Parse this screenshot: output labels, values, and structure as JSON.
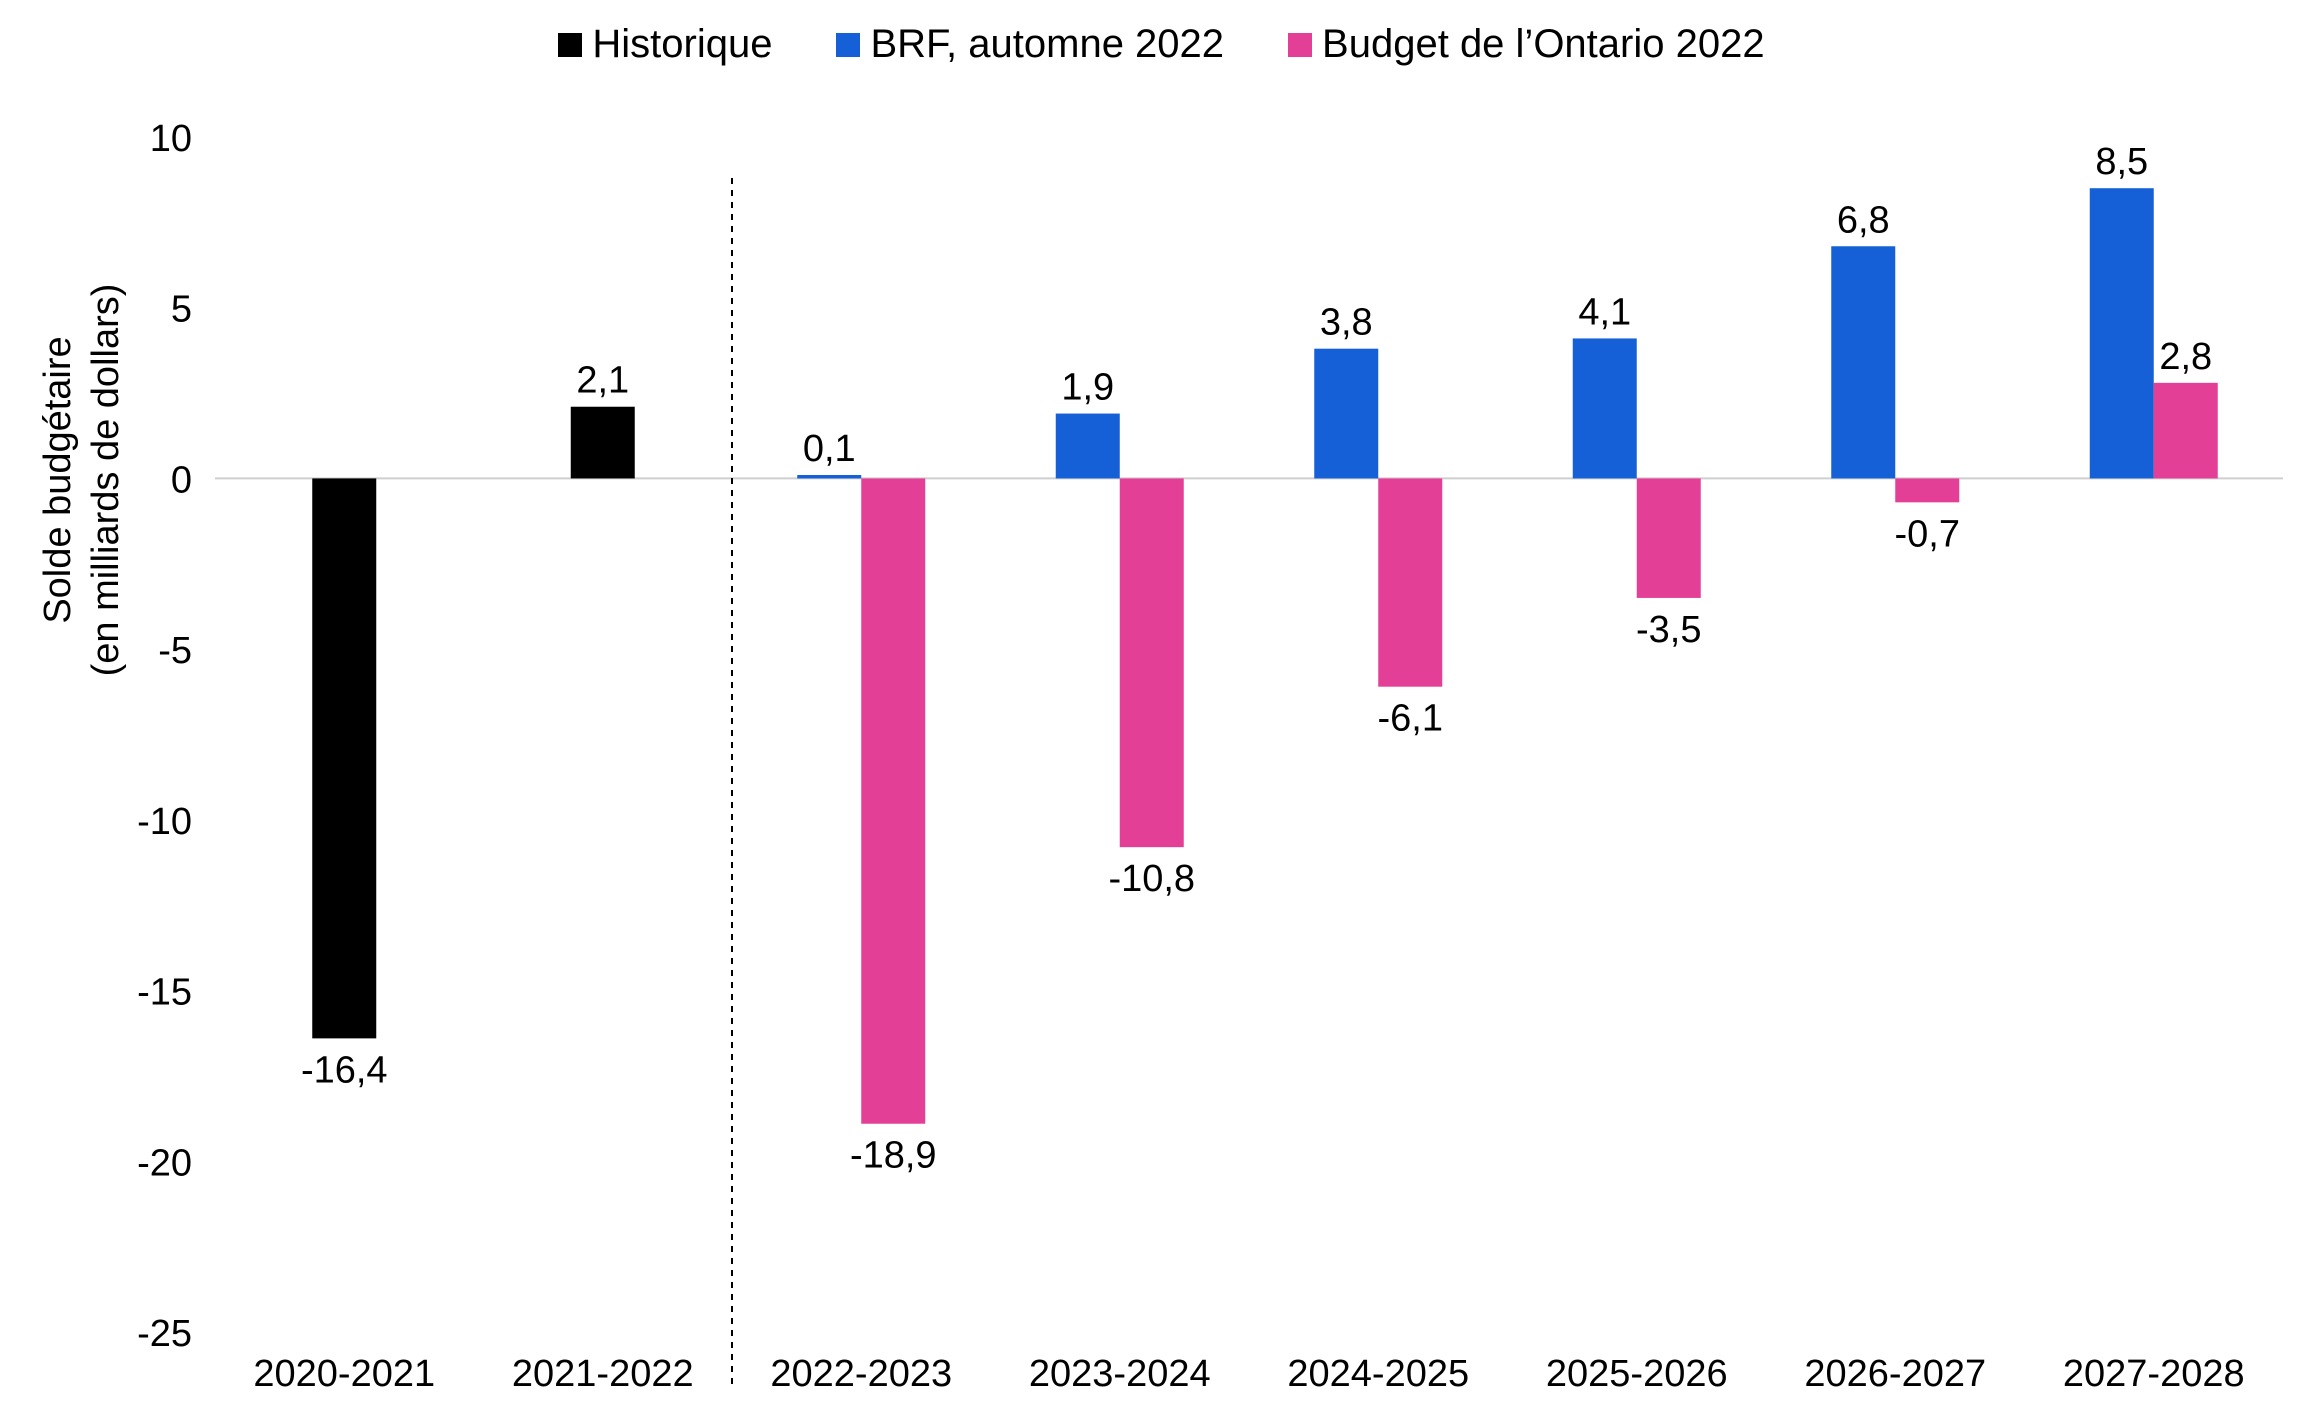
{
  "chart_data": {
    "type": "bar",
    "title": "",
    "xlabel": "",
    "ylabel_lines": [
      "Solde budgétaire",
      "(en milliards de dollars)"
    ],
    "ylim": [
      -25,
      10
    ],
    "yticks": [
      10,
      5,
      0,
      -5,
      -10,
      -15,
      -20,
      -25
    ],
    "ytick_labels": [
      "10",
      "5",
      "0",
      "-5",
      "-10",
      "-15",
      "-20",
      "-25"
    ],
    "categories": [
      "2020-2021",
      "2021-2022",
      "2022-2023",
      "2023-2024",
      "2024-2025",
      "2025-2026",
      "2026-2027",
      "2027-2028"
    ],
    "historical_divider_after": "2021-2022",
    "legend_position": "top-center",
    "series": [
      {
        "name": "Historique",
        "color": "#000000",
        "values": [
          -16.4,
          2.1,
          null,
          null,
          null,
          null,
          null,
          null
        ],
        "labels": [
          "-16,4",
          "2,1",
          "",
          "",
          "",
          "",
          "",
          ""
        ]
      },
      {
        "name": "BRF, automne 2022",
        "color": "#1560D6",
        "values": [
          null,
          null,
          0.1,
          1.9,
          3.8,
          4.1,
          6.8,
          8.5
        ],
        "labels": [
          "",
          "",
          "0,1",
          "1,9",
          "3,8",
          "4,1",
          "6,8",
          "8,5"
        ]
      },
      {
        "name": "Budget de l’Ontario 2022",
        "color": "#E43F96",
        "values": [
          null,
          null,
          -18.9,
          -10.8,
          -6.1,
          -3.5,
          -0.7,
          2.8
        ],
        "labels": [
          "",
          "",
          "-18,9",
          "-10,8",
          "-6,1",
          "-3,5",
          "-0,7",
          "2,8"
        ]
      }
    ]
  }
}
